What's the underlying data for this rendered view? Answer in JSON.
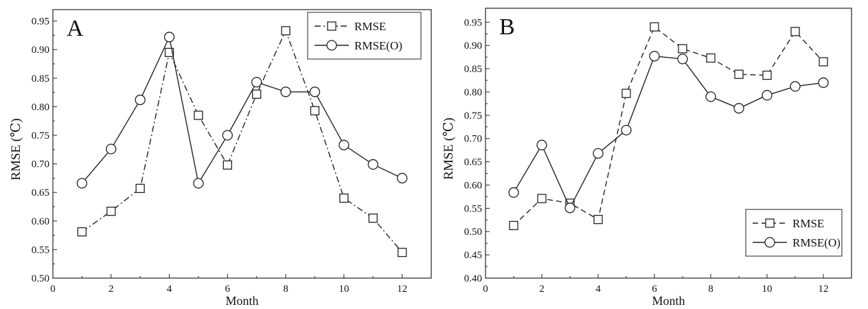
{
  "chart_data": [
    {
      "panel_label": "A",
      "type": "line",
      "xlabel": "Month",
      "ylabel": "RMSE (℃)",
      "xlim": [
        0,
        13
      ],
      "ylim": [
        0.5,
        0.97
      ],
      "xticks": [
        "0",
        "2",
        "4",
        "6",
        "8",
        "10",
        "12"
      ],
      "yticks": [
        "0.50",
        "0.55",
        "0.60",
        "0.65",
        "0.70",
        "0.75",
        "0.80",
        "0.85",
        "0.90",
        "0.95"
      ],
      "legend_position": "top-right",
      "x": [
        1,
        2,
        3,
        4,
        5,
        6,
        7,
        8,
        9,
        10,
        11,
        12
      ],
      "series": [
        {
          "name": "RMSE",
          "marker": "square",
          "line_style": "dash-dot",
          "values": [
            0.581,
            0.617,
            0.657,
            0.895,
            0.785,
            0.698,
            0.822,
            0.933,
            0.793,
            0.64,
            0.605,
            0.545
          ]
        },
        {
          "name": "RMSE(O)",
          "marker": "circle",
          "line_style": "solid",
          "values": [
            0.666,
            0.726,
            0.812,
            0.922,
            0.666,
            0.75,
            0.843,
            0.826,
            0.826,
            0.733,
            0.699,
            0.675
          ]
        }
      ]
    },
    {
      "panel_label": "B",
      "type": "line",
      "xlabel": "Month",
      "ylabel": "RMSE (℃)",
      "xlim": [
        0,
        13
      ],
      "ylim": [
        0.4,
        0.98
      ],
      "xticks": [
        "0",
        "2",
        "4",
        "6",
        "8",
        "10",
        "12"
      ],
      "yticks": [
        "0.40",
        "0.45",
        "0.50",
        "0.55",
        "0.60",
        "0.65",
        "0.70",
        "0.75",
        "0.80",
        "0.85",
        "0.90",
        "0.95"
      ],
      "legend_position": "bottom-right",
      "x": [
        1,
        2,
        3,
        4,
        5,
        6,
        7,
        8,
        9,
        10,
        11,
        12
      ],
      "series": [
        {
          "name": "RMSE",
          "marker": "square",
          "line_style": "dash",
          "values": [
            0.513,
            0.571,
            0.561,
            0.526,
            0.797,
            0.94,
            0.893,
            0.873,
            0.838,
            0.836,
            0.93,
            0.865
          ]
        },
        {
          "name": "RMSE(O)",
          "marker": "circle",
          "line_style": "solid",
          "values": [
            0.584,
            0.686,
            0.551,
            0.668,
            0.718,
            0.877,
            0.871,
            0.79,
            0.765,
            0.793,
            0.812,
            0.82
          ]
        }
      ]
    }
  ]
}
